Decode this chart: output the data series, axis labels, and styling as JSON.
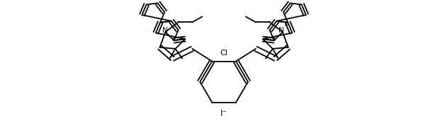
{
  "background_color": "#ffffff",
  "line_color": "#000000",
  "line_width": 1.3,
  "dbo": 0.008,
  "figsize": [
    6.32,
    1.88
  ],
  "dpi": 100,
  "xlim": [
    0,
    63.2
  ],
  "ylim": [
    0,
    18.8
  ]
}
